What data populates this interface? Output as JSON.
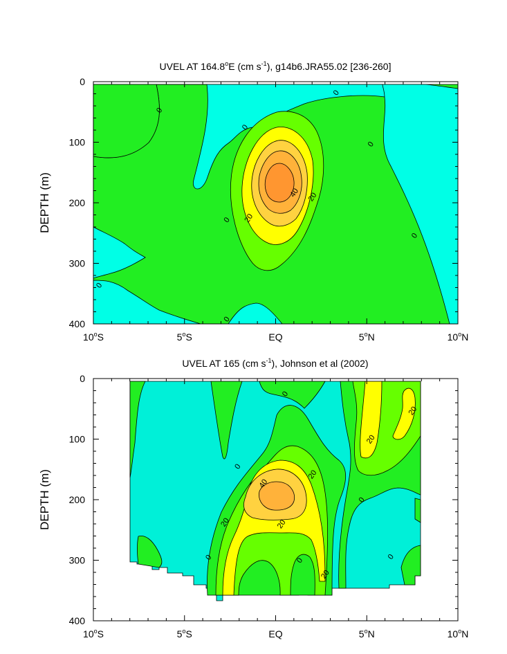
{
  "colors": {
    "lt0": "#00ffe6",
    "lt0b": "#00f0d8",
    "c0_10": "#22ee22",
    "c10_20": "#66ff00",
    "c20_30": "#ffff00",
    "c30_40": "#ffd240",
    "c40_50": "#ffb23a",
    "c50_60": "#ff9630"
  },
  "chart_data": [
    {
      "type": "contour",
      "title": "UVEL AT 164.8",
      "title_deg": "o",
      "title_rest": "E (cm s",
      "title_sup": "-1",
      "title_end": "), g14b6.JRA55.02 [236-260]",
      "ylabel": "DEPTH (m)",
      "x_ticks": [
        {
          "v": -10,
          "label": "10",
          "deg": "o",
          "hemi": "S"
        },
        {
          "v": -5,
          "label": "5",
          "deg": "o",
          "hemi": "S"
        },
        {
          "v": 0,
          "label": "EQ",
          "deg": "",
          "hemi": ""
        },
        {
          "v": 5,
          "label": "5",
          "deg": "o",
          "hemi": "N"
        },
        {
          "v": 10,
          "label": "10",
          "deg": "o",
          "hemi": "N"
        }
      ],
      "y_ticks": [
        0,
        100,
        200,
        300,
        400
      ],
      "xlim": [
        -10,
        10
      ],
      "ylim": [
        0,
        400
      ],
      "contour_interval": 10,
      "contour_labels": [
        {
          "t": "0",
          "lat": -6.4,
          "depth": 47
        },
        {
          "t": "0",
          "lat": -1.7,
          "depth": 75
        },
        {
          "t": "0",
          "lat": 3.3,
          "depth": 18
        },
        {
          "t": "0",
          "lat": 5.2,
          "depth": 103
        },
        {
          "t": "0",
          "lat": 7.6,
          "depth": 254
        },
        {
          "t": "0",
          "lat": -9.7,
          "depth": 336
        },
        {
          "t": "0",
          "lat": -2.7,
          "depth": 228
        },
        {
          "t": "0",
          "lat": -2.7,
          "depth": 392
        },
        {
          "t": "20",
          "lat": -1.5,
          "depth": 225
        },
        {
          "t": "20",
          "lat": 2.0,
          "depth": 190
        },
        {
          "t": "40",
          "lat": 1.0,
          "depth": 183
        }
      ]
    },
    {
      "type": "contour",
      "title": "UVEL AT 165 (cm s",
      "title_sup": "-1",
      "title_end": "), Johnson et al (2002)",
      "ylabel": "DEPTH (m)",
      "x_ticks": [
        {
          "v": -10,
          "label": "10",
          "deg": "o",
          "hemi": "S"
        },
        {
          "v": -5,
          "label": "5",
          "deg": "o",
          "hemi": "S"
        },
        {
          "v": 0,
          "label": "EQ",
          "deg": "",
          "hemi": ""
        },
        {
          "v": 5,
          "label": "5",
          "deg": "o",
          "hemi": "N"
        },
        {
          "v": 10,
          "label": "10",
          "deg": "o",
          "hemi": "N"
        }
      ],
      "y_ticks": [
        0,
        100,
        200,
        300,
        400
      ],
      "xlim": [
        -10,
        10
      ],
      "ylim": [
        0,
        400
      ],
      "contour_interval": 10,
      "contour_labels": [
        {
          "t": "0",
          "lat": 0.5,
          "depth": 25
        },
        {
          "t": "0",
          "lat": -2.1,
          "depth": 145
        },
        {
          "t": "0",
          "lat": 4.7,
          "depth": 200
        },
        {
          "t": "0",
          "lat": -3.7,
          "depth": 295
        },
        {
          "t": "0",
          "lat": 6.3,
          "depth": 294
        },
        {
          "t": "0",
          "lat": 1.3,
          "depth": 300
        },
        {
          "t": "20",
          "lat": 2.0,
          "depth": 158
        },
        {
          "t": "20",
          "lat": 0.3,
          "depth": 240
        },
        {
          "t": "20",
          "lat": -2.8,
          "depth": 237
        },
        {
          "t": "20",
          "lat": 5.2,
          "depth": 100
        },
        {
          "t": "20",
          "lat": 7.5,
          "depth": 53
        },
        {
          "t": "20",
          "lat": 2.7,
          "depth": 323
        },
        {
          "t": "40",
          "lat": -0.7,
          "depth": 173
        }
      ]
    }
  ]
}
